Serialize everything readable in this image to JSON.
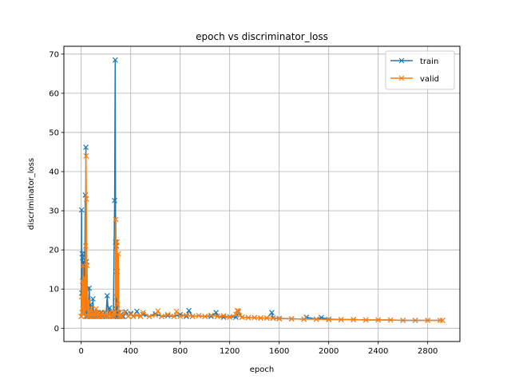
{
  "chart_data": {
    "type": "line",
    "title": "epoch vs discriminator_loss",
    "xlabel": "epoch",
    "ylabel": "discriminator_loss",
    "xlim": [
      -140,
      3060
    ],
    "ylim": [
      -3.4,
      72
    ],
    "xticks": [
      0,
      400,
      800,
      1200,
      1600,
      2000,
      2400,
      2800
    ],
    "yticks": [
      0,
      10,
      20,
      30,
      40,
      50,
      60,
      70
    ],
    "grid": true,
    "legend_position": "top-right",
    "marker": "x",
    "series": [
      {
        "name": "train",
        "color": "#1f77b4",
        "x": [
          0,
          3,
          5,
          8,
          10,
          12,
          15,
          18,
          20,
          22,
          25,
          28,
          30,
          33,
          35,
          38,
          40,
          42,
          44,
          45,
          47,
          50,
          55,
          60,
          65,
          70,
          75,
          80,
          85,
          90,
          95,
          100,
          110,
          120,
          130,
          140,
          150,
          160,
          170,
          180,
          190,
          200,
          210,
          220,
          230,
          240,
          250,
          260,
          270,
          275,
          278,
          280,
          283,
          285,
          288,
          290,
          293,
          295,
          298,
          300,
          305,
          310,
          320,
          330,
          340,
          360,
          380,
          400,
          420,
          450,
          480,
          500,
          550,
          600,
          650,
          700,
          750,
          800,
          850,
          870,
          900,
          950,
          1000,
          1050,
          1090,
          1100,
          1150,
          1200,
          1250,
          1270,
          1300,
          1350,
          1400,
          1450,
          1500,
          1540,
          1550,
          1600,
          1700,
          1800,
          1820,
          1900,
          1940,
          2000,
          2100,
          2200,
          2300,
          2400,
          2500,
          2600,
          2700,
          2800,
          2900,
          2920
        ],
        "y": [
          3,
          30.2,
          9,
          19,
          4,
          18,
          6,
          12,
          17,
          5,
          14,
          10,
          19,
          34,
          8,
          46.2,
          4,
          17,
          6,
          3,
          10,
          4,
          3,
          5,
          10.2,
          3,
          6,
          3,
          4,
          3,
          7.5,
          3,
          4,
          3,
          4,
          3,
          3,
          4,
          3,
          3,
          4,
          3,
          8.3,
          3,
          5.2,
          3,
          4,
          3,
          32.6,
          68.5,
          22,
          5,
          3,
          21,
          4,
          14.5,
          3,
          4,
          3,
          4,
          3,
          3,
          3.5,
          3,
          3,
          4.2,
          3,
          3.8,
          3,
          4.3,
          3,
          3.5,
          3,
          3.7,
          3,
          3.2,
          3,
          3.5,
          3,
          4.5,
          3,
          3.2,
          3,
          3,
          4,
          3,
          2.8,
          2.9,
          2.8,
          4.2,
          2.8,
          2.7,
          2.7,
          2.6,
          2.6,
          4,
          2.6,
          2.5,
          2.4,
          2.3,
          2.8,
          2.3,
          2.7,
          2.3,
          2.2,
          2.2,
          2.1,
          2.1,
          2.1,
          2.0,
          2.0,
          2.0,
          2.0,
          2.0
        ]
      },
      {
        "name": "valid",
        "color": "#ff7f0e",
        "x": [
          0,
          3,
          6,
          9,
          12,
          15,
          18,
          21,
          24,
          27,
          30,
          33,
          36,
          39,
          42,
          45,
          48,
          51,
          55,
          60,
          65,
          70,
          80,
          90,
          100,
          110,
          120,
          130,
          140,
          150,
          160,
          170,
          180,
          190,
          200,
          210,
          220,
          230,
          240,
          250,
          260,
          270,
          275,
          280,
          285,
          290,
          295,
          300,
          305,
          310,
          320,
          330,
          350,
          380,
          400,
          420,
          450,
          480,
          500,
          550,
          600,
          620,
          650,
          700,
          750,
          770,
          800,
          850,
          900,
          950,
          1000,
          1050,
          1100,
          1150,
          1200,
          1250,
          1260,
          1270,
          1280,
          1300,
          1350,
          1400,
          1450,
          1500,
          1550,
          1600,
          1700,
          1800,
          1900,
          2000,
          2100,
          2200,
          2300,
          2400,
          2500,
          2600,
          2700,
          2800,
          2900,
          2920
        ],
        "y": [
          3,
          8,
          4,
          12,
          5,
          16,
          6,
          10,
          4,
          13,
          9,
          3,
          21,
          44,
          33,
          5,
          16,
          6,
          3,
          7,
          4,
          3,
          5,
          3,
          4,
          3,
          5,
          3,
          4,
          3,
          3,
          4,
          3,
          3,
          4,
          3,
          3,
          4,
          3,
          3,
          4,
          3,
          4,
          27.8,
          8,
          22,
          6,
          19,
          3,
          4,
          3,
          3,
          4,
          3,
          3.5,
          3,
          3.3,
          3,
          4,
          3,
          3.3,
          4.4,
          3,
          3.5,
          3,
          4.3,
          3,
          3.3,
          3,
          3.2,
          3,
          3.3,
          3,
          3.2,
          2.8,
          3.5,
          4.5,
          4.4,
          3.2,
          2.8,
          2.7,
          2.7,
          2.6,
          2.6,
          2.5,
          2.4,
          2.4,
          2.3,
          2.3,
          2.2,
          2.2,
          2.2,
          2.1,
          2.1,
          2.1,
          2.0,
          2.0,
          2.0,
          2.0,
          2.0
        ]
      }
    ]
  }
}
